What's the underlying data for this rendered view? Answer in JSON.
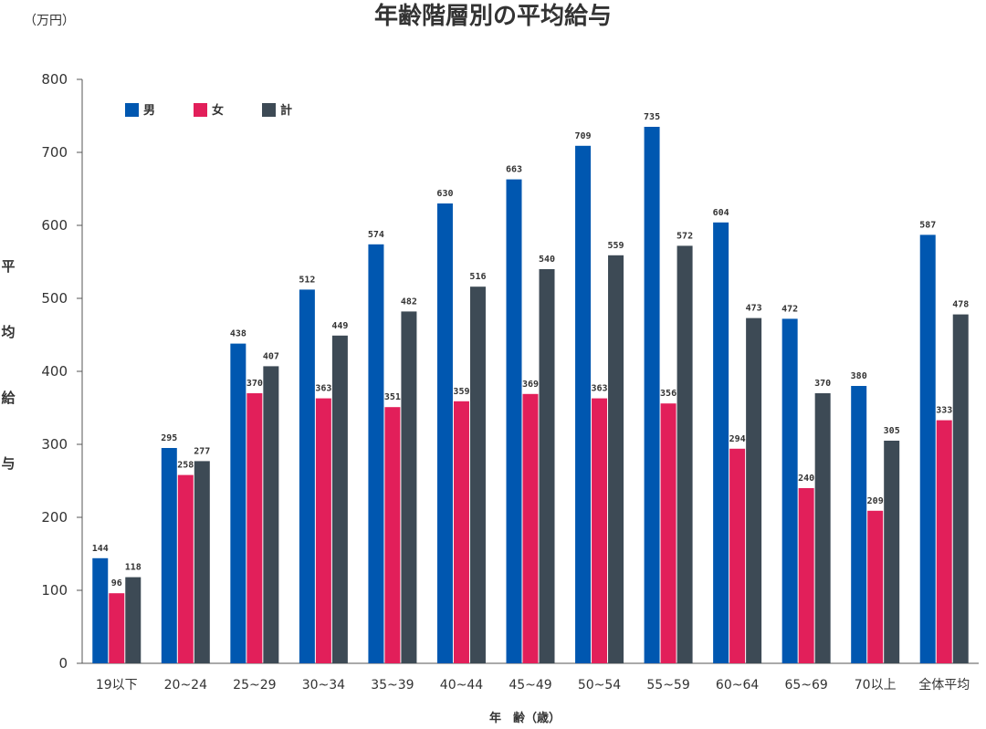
{
  "chart_data": {
    "type": "bar",
    "title": "年齢階層別の平均給与",
    "unit_label": "（万円）",
    "ylabel": "平均給与",
    "xlabel": "年　齢（歳）",
    "ylim": [
      0,
      800
    ],
    "yticks": [
      0,
      100,
      200,
      300,
      400,
      500,
      600,
      700,
      800
    ],
    "grid": false,
    "legend_position": "top-left",
    "categories": [
      "19以下",
      "20~24",
      "25~29",
      "30~34",
      "35~39",
      "40~44",
      "45~49",
      "50~54",
      "55~59",
      "60~64",
      "65~69",
      "70以上",
      "全体平均"
    ],
    "series": [
      {
        "name": "男",
        "color": "#0057b0",
        "values": [
          144,
          295,
          438,
          512,
          574,
          630,
          663,
          709,
          735,
          604,
          472,
          380,
          587
        ]
      },
      {
        "name": "女",
        "color": "#e21f5a",
        "values": [
          96,
          258,
          370,
          363,
          351,
          359,
          369,
          363,
          356,
          294,
          240,
          209,
          333
        ]
      },
      {
        "name": "計",
        "color": "#3d4a55",
        "values": [
          118,
          277,
          407,
          449,
          482,
          516,
          540,
          559,
          572,
          473,
          370,
          305,
          478
        ]
      }
    ]
  }
}
